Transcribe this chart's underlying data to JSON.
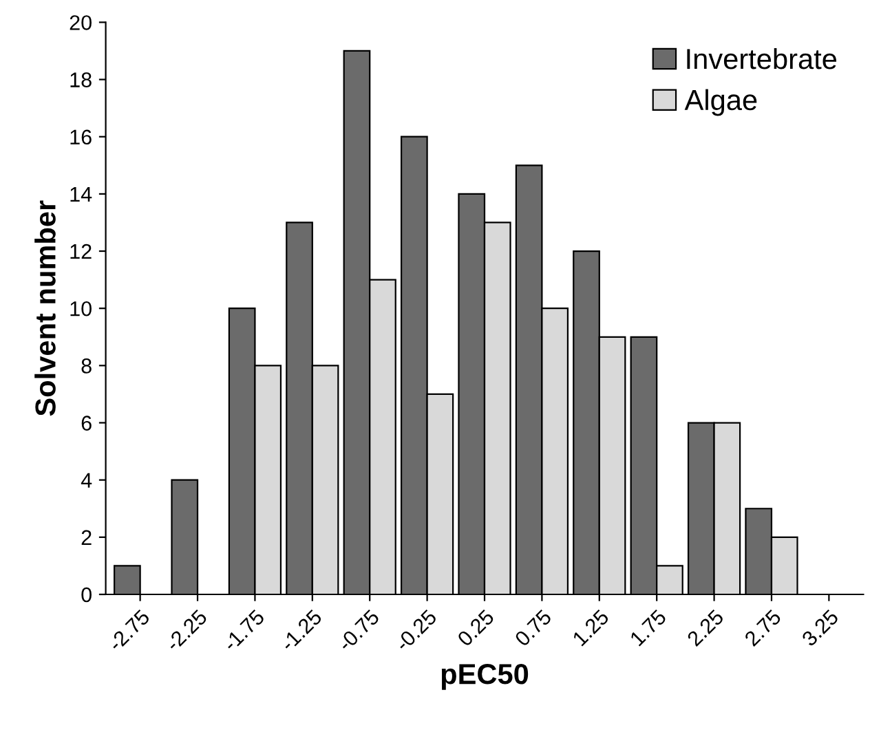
{
  "chart_data": {
    "type": "bar",
    "xlabel": "pEC50",
    "ylabel": "Solvent number",
    "categories": [
      "-2.75",
      "-2.25",
      "-1.75",
      "-1.25",
      "-0.75",
      "-0.25",
      "0.25",
      "0.75",
      "1.25",
      "1.75",
      "2.25",
      "2.75",
      "3.25"
    ],
    "series": [
      {
        "name": "Invertebrate",
        "color": "#6b6b6b",
        "values": [
          1,
          4,
          10,
          13,
          19,
          16,
          14,
          15,
          12,
          9,
          6,
          3,
          null
        ]
      },
      {
        "name": "Algae",
        "color": "#d9d9d9",
        "values": [
          null,
          null,
          8,
          8,
          11,
          7,
          13,
          10,
          9,
          1,
          6,
          2,
          null
        ]
      }
    ],
    "ylim": [
      0,
      20
    ],
    "yticks": [
      0,
      2,
      4,
      6,
      8,
      10,
      12,
      14,
      16,
      18,
      20
    ],
    "grid": false,
    "legend": "top right"
  }
}
